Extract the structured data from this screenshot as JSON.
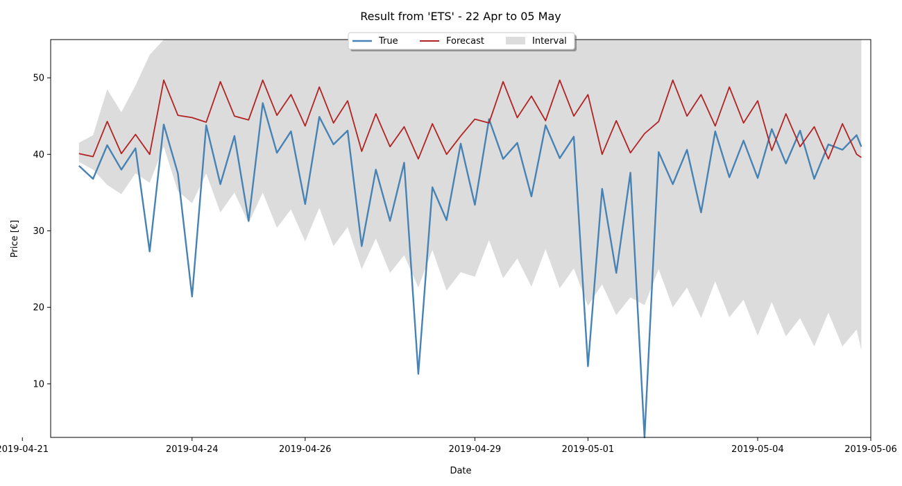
{
  "chart_data": {
    "type": "line",
    "title": "Result from 'ETS' - 22 Apr to 05 May",
    "xlabel": "Date",
    "ylabel": "Price [€]",
    "x_range_days": [
      "2019-04-21T12:00",
      "2019-05-06T00:00"
    ],
    "ylim": [
      3,
      55
    ],
    "y_ticks": [
      10,
      20,
      30,
      40,
      50
    ],
    "x_ticks": [
      "2019-04-21",
      "2019-04-24",
      "2019-04-26",
      "2019-04-29",
      "2019-05-01",
      "2019-05-04",
      "2019-05-06"
    ],
    "grid": false,
    "legend": {
      "placement": "top-center",
      "entries": [
        {
          "label": "True",
          "color": "#4682b4",
          "kind": "line"
        },
        {
          "label": "Forecast",
          "color": "#b22222",
          "kind": "line"
        },
        {
          "label": "Interval",
          "color": "#dcdcdc",
          "kind": "patch"
        }
      ]
    },
    "series": [
      {
        "name": "True",
        "color": "#4682b4",
        "points": [
          [
            "2019-04-22T00:00",
            38.5
          ],
          [
            "2019-04-22T06:00",
            36.8
          ],
          [
            "2019-04-22T12:00",
            41.2
          ],
          [
            "2019-04-22T18:00",
            38.0
          ],
          [
            "2019-04-23T00:00",
            40.8
          ],
          [
            "2019-04-23T06:00",
            27.3
          ],
          [
            "2019-04-23T12:00",
            43.9
          ],
          [
            "2019-04-23T18:00",
            37.5
          ],
          [
            "2019-04-24T00:00",
            21.4
          ],
          [
            "2019-04-24T06:00",
            43.8
          ],
          [
            "2019-04-24T12:00",
            36.1
          ],
          [
            "2019-04-24T18:00",
            42.4
          ],
          [
            "2019-04-25T00:00",
            31.3
          ],
          [
            "2019-04-25T06:00",
            46.7
          ],
          [
            "2019-04-25T12:00",
            40.2
          ],
          [
            "2019-04-25T18:00",
            43.0
          ],
          [
            "2019-04-26T00:00",
            33.5
          ],
          [
            "2019-04-26T06:00",
            44.9
          ],
          [
            "2019-04-26T12:00",
            41.3
          ],
          [
            "2019-04-26T18:00",
            43.1
          ],
          [
            "2019-04-27T00:00",
            28.0
          ],
          [
            "2019-04-27T06:00",
            38.0
          ],
          [
            "2019-04-27T12:00",
            31.3
          ],
          [
            "2019-04-27T18:00",
            38.9
          ],
          [
            "2019-04-28T00:00",
            11.3
          ],
          [
            "2019-04-28T06:00",
            35.7
          ],
          [
            "2019-04-28T12:00",
            31.4
          ],
          [
            "2019-04-28T18:00",
            41.4
          ],
          [
            "2019-04-29T00:00",
            33.4
          ],
          [
            "2019-04-29T06:00",
            44.6
          ],
          [
            "2019-04-29T12:00",
            39.4
          ],
          [
            "2019-04-29T18:00",
            41.5
          ],
          [
            "2019-04-30T00:00",
            34.5
          ],
          [
            "2019-04-30T06:00",
            43.8
          ],
          [
            "2019-04-30T12:00",
            39.5
          ],
          [
            "2019-04-30T18:00",
            42.3
          ],
          [
            "2019-05-01T00:00",
            12.3
          ],
          [
            "2019-05-01T06:00",
            35.5
          ],
          [
            "2019-05-01T12:00",
            24.5
          ],
          [
            "2019-05-01T18:00",
            37.6
          ],
          [
            "2019-05-02T00:00",
            3.0
          ],
          [
            "2019-05-02T06:00",
            40.3
          ],
          [
            "2019-05-02T12:00",
            36.1
          ],
          [
            "2019-05-02T18:00",
            40.6
          ],
          [
            "2019-05-03T00:00",
            32.4
          ],
          [
            "2019-05-03T06:00",
            43.0
          ],
          [
            "2019-05-03T12:00",
            37.0
          ],
          [
            "2019-05-03T18:00",
            41.8
          ],
          [
            "2019-05-04T00:00",
            36.9
          ],
          [
            "2019-05-04T06:00",
            43.3
          ],
          [
            "2019-05-04T12:00",
            38.8
          ],
          [
            "2019-05-04T18:00",
            43.1
          ],
          [
            "2019-05-05T00:00",
            36.8
          ],
          [
            "2019-05-05T06:00",
            41.3
          ],
          [
            "2019-05-05T12:00",
            40.6
          ],
          [
            "2019-05-05T18:00",
            42.5
          ],
          [
            "2019-05-05T20:00",
            41.0
          ]
        ]
      },
      {
        "name": "Forecast",
        "color": "#b22222",
        "points": [
          [
            "2019-04-22T00:00",
            40.1
          ],
          [
            "2019-04-22T06:00",
            39.7
          ],
          [
            "2019-04-22T12:00",
            44.3
          ],
          [
            "2019-04-22T18:00",
            40.1
          ],
          [
            "2019-04-23T00:00",
            42.6
          ],
          [
            "2019-04-23T06:00",
            40.0
          ],
          [
            "2019-04-23T12:00",
            49.7
          ],
          [
            "2019-04-23T18:00",
            45.1
          ],
          [
            "2019-04-24T00:00",
            44.8
          ],
          [
            "2019-04-24T06:00",
            44.2
          ],
          [
            "2019-04-24T12:00",
            49.5
          ],
          [
            "2019-04-24T18:00",
            45.0
          ],
          [
            "2019-04-25T00:00",
            44.5
          ],
          [
            "2019-04-25T06:00",
            49.7
          ],
          [
            "2019-04-25T12:00",
            45.1
          ],
          [
            "2019-04-25T18:00",
            47.8
          ],
          [
            "2019-04-26T00:00",
            43.7
          ],
          [
            "2019-04-26T06:00",
            48.8
          ],
          [
            "2019-04-26T12:00",
            44.1
          ],
          [
            "2019-04-26T18:00",
            47.0
          ],
          [
            "2019-04-27T00:00",
            40.4
          ],
          [
            "2019-04-27T06:00",
            45.3
          ],
          [
            "2019-04-27T12:00",
            41.0
          ],
          [
            "2019-04-27T18:00",
            43.6
          ],
          [
            "2019-04-28T00:00",
            39.4
          ],
          [
            "2019-04-28T06:00",
            44.0
          ],
          [
            "2019-04-28T12:00",
            40.0
          ],
          [
            "2019-04-28T18:00",
            42.4
          ],
          [
            "2019-04-29T00:00",
            44.6
          ],
          [
            "2019-04-29T06:00",
            44.1
          ],
          [
            "2019-04-29T12:00",
            49.5
          ],
          [
            "2019-04-29T18:00",
            44.8
          ],
          [
            "2019-04-30T00:00",
            47.6
          ],
          [
            "2019-04-30T06:00",
            44.4
          ],
          [
            "2019-04-30T12:00",
            49.7
          ],
          [
            "2019-04-30T18:00",
            45.0
          ],
          [
            "2019-05-01T00:00",
            47.8
          ],
          [
            "2019-05-01T06:00",
            40.0
          ],
          [
            "2019-05-01T12:00",
            44.4
          ],
          [
            "2019-05-01T18:00",
            40.2
          ],
          [
            "2019-05-02T00:00",
            42.7
          ],
          [
            "2019-05-02T06:00",
            44.3
          ],
          [
            "2019-05-02T12:00",
            49.7
          ],
          [
            "2019-05-02T18:00",
            45.0
          ],
          [
            "2019-05-03T00:00",
            47.8
          ],
          [
            "2019-05-03T06:00",
            43.7
          ],
          [
            "2019-05-03T12:00",
            48.8
          ],
          [
            "2019-05-03T18:00",
            44.1
          ],
          [
            "2019-05-04T00:00",
            47.0
          ],
          [
            "2019-05-04T06:00",
            40.5
          ],
          [
            "2019-05-04T12:00",
            45.3
          ],
          [
            "2019-05-04T18:00",
            41.0
          ],
          [
            "2019-05-05T00:00",
            43.6
          ],
          [
            "2019-05-05T06:00",
            39.4
          ],
          [
            "2019-05-05T12:00",
            44.0
          ],
          [
            "2019-05-05T18:00",
            40.0
          ],
          [
            "2019-05-05T20:00",
            39.6
          ]
        ]
      },
      {
        "name": "Interval",
        "color": "#dcdcdc",
        "kind": "band",
        "points_lower": [
          [
            "2019-04-22T00:00",
            39.0
          ],
          [
            "2019-04-22T06:00",
            38.0
          ],
          [
            "2019-04-22T12:00",
            36.0
          ],
          [
            "2019-04-22T18:00",
            34.8
          ],
          [
            "2019-04-23T00:00",
            37.5
          ],
          [
            "2019-04-23T06:00",
            36.3
          ],
          [
            "2019-04-23T12:00",
            41.0
          ],
          [
            "2019-04-23T18:00",
            35.2
          ],
          [
            "2019-04-24T00:00",
            33.6
          ],
          [
            "2019-04-24T06:00",
            37.5
          ],
          [
            "2019-04-24T12:00",
            32.4
          ],
          [
            "2019-04-24T18:00",
            35.0
          ],
          [
            "2019-04-25T00:00",
            31.0
          ],
          [
            "2019-04-25T06:00",
            35.0
          ],
          [
            "2019-04-25T12:00",
            30.4
          ],
          [
            "2019-04-25T18:00",
            32.8
          ],
          [
            "2019-04-26T00:00",
            28.6
          ],
          [
            "2019-04-26T06:00",
            33.0
          ],
          [
            "2019-04-26T12:00",
            28.0
          ],
          [
            "2019-04-26T18:00",
            30.5
          ],
          [
            "2019-04-27T00:00",
            25.0
          ],
          [
            "2019-04-27T06:00",
            29.0
          ],
          [
            "2019-04-27T12:00",
            24.5
          ],
          [
            "2019-04-27T18:00",
            26.8
          ],
          [
            "2019-04-28T00:00",
            22.6
          ],
          [
            "2019-04-28T06:00",
            27.5
          ],
          [
            "2019-04-28T12:00",
            22.2
          ],
          [
            "2019-04-28T18:00",
            24.6
          ],
          [
            "2019-04-29T00:00",
            24.0
          ],
          [
            "2019-04-29T06:00",
            28.8
          ],
          [
            "2019-04-29T12:00",
            23.8
          ],
          [
            "2019-04-29T18:00",
            26.4
          ],
          [
            "2019-04-30T00:00",
            22.7
          ],
          [
            "2019-04-30T06:00",
            27.6
          ],
          [
            "2019-04-30T12:00",
            22.5
          ],
          [
            "2019-04-30T18:00",
            25.1
          ],
          [
            "2019-05-01T00:00",
            20.2
          ],
          [
            "2019-05-01T06:00",
            23.0
          ],
          [
            "2019-05-01T12:00",
            19.0
          ],
          [
            "2019-05-01T18:00",
            21.3
          ],
          [
            "2019-05-02T00:00",
            20.3
          ],
          [
            "2019-05-02T06:00",
            25.0
          ],
          [
            "2019-05-02T12:00",
            20.0
          ],
          [
            "2019-05-02T18:00",
            22.6
          ],
          [
            "2019-05-03T00:00",
            18.6
          ],
          [
            "2019-05-03T06:00",
            23.4
          ],
          [
            "2019-05-03T12:00",
            18.7
          ],
          [
            "2019-05-03T18:00",
            21.0
          ],
          [
            "2019-05-04T00:00",
            16.3
          ],
          [
            "2019-05-04T06:00",
            20.7
          ],
          [
            "2019-05-04T12:00",
            16.2
          ],
          [
            "2019-05-04T18:00",
            18.6
          ],
          [
            "2019-05-05T00:00",
            14.9
          ],
          [
            "2019-05-05T06:00",
            19.3
          ],
          [
            "2019-05-05T12:00",
            14.9
          ],
          [
            "2019-05-05T18:00",
            17.1
          ],
          [
            "2019-05-05T20:00",
            14.4
          ]
        ],
        "points_upper": [
          [
            "2019-04-22T00:00",
            41.5
          ],
          [
            "2019-04-22T06:00",
            42.5
          ],
          [
            "2019-04-22T12:00",
            48.5
          ],
          [
            "2019-04-22T18:00",
            45.5
          ],
          [
            "2019-04-23T00:00",
            49.0
          ],
          [
            "2019-04-23T06:00",
            53.0
          ],
          [
            "2019-04-23T12:00",
            55.0
          ],
          [
            "2019-04-23T18:00",
            55.0
          ],
          [
            "2019-04-24T00:00",
            55.0
          ],
          [
            "2019-04-24T06:00",
            55.0
          ],
          [
            "2019-04-24T12:00",
            55.0
          ],
          [
            "2019-04-24T18:00",
            55.0
          ],
          [
            "2019-05-05T20:00",
            55.0
          ]
        ]
      }
    ]
  }
}
